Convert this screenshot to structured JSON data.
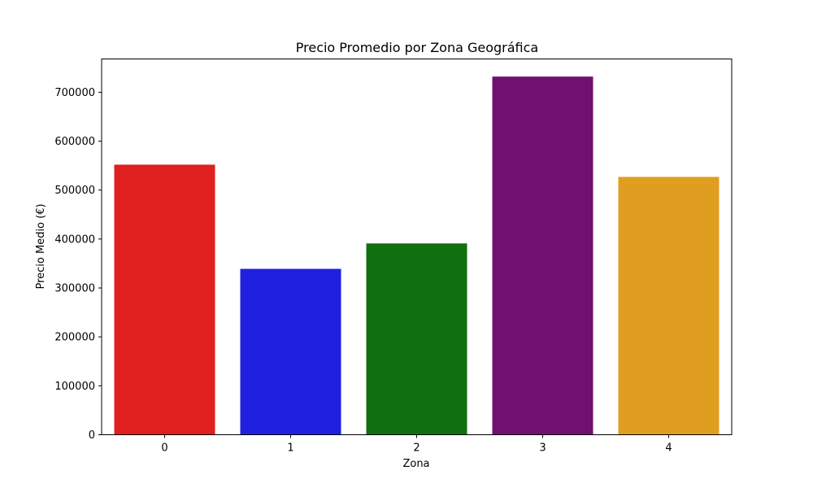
{
  "chart_data": {
    "type": "bar",
    "title": "Precio Promedio por Zona Geográfica",
    "xlabel": "Zona",
    "ylabel": "Precio Medio (€)",
    "categories": [
      "0",
      "1",
      "2",
      "3",
      "4"
    ],
    "values": [
      552000,
      339000,
      391000,
      732000,
      527000
    ],
    "colors": [
      "#e01f1f",
      "#2020e0",
      "#0f7010",
      "#701070",
      "#e09e20"
    ],
    "ylim": [
      0,
      768000
    ],
    "yticks": [
      0,
      100000,
      200000,
      300000,
      400000,
      500000,
      600000,
      700000
    ],
    "ytick_labels": [
      "0",
      "100000",
      "200000",
      "300000",
      "400000",
      "500000",
      "600000",
      "700000"
    ],
    "grid": false,
    "legend": "none"
  }
}
